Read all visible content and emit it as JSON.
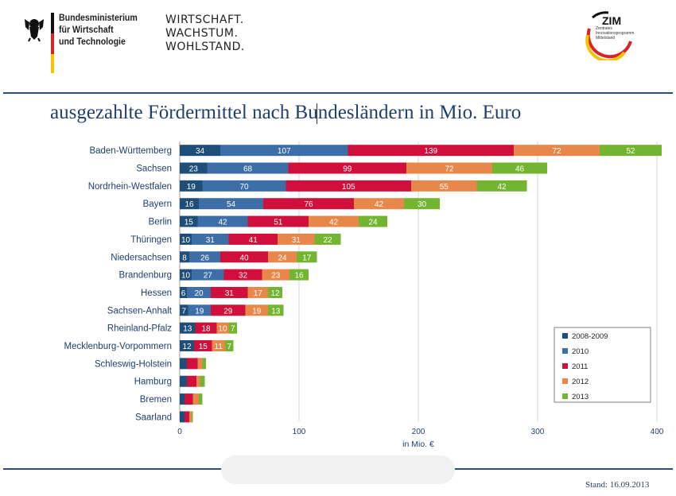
{
  "header": {
    "ministry_name": "Bundesministerium\nfür Wirtschaft\nund Technologie",
    "motto": "WIRTSCHAFT.\nWACHSTUM.\nWOHLSTAND.",
    "zim_logo": {
      "title": "ZIM",
      "subtitle": "Zentrales Innovationsprogramm Mittelstand"
    }
  },
  "slide": {
    "title": "ausgezahlte Fördermittel nach Bundesländern in Mio. Euro",
    "stand": "Stand: 16.09.2013"
  },
  "colors": {
    "2008-2009": "#1f4e79",
    "2010": "#3d6ea8",
    "2011": "#d0103a",
    "2012": "#e8874a",
    "2013": "#73b530",
    "axis_label": "#1f3f6e"
  },
  "chart_data": {
    "type": "bar",
    "orientation": "horizontal",
    "stacked": true,
    "categories": [
      "Baden-Württemberg",
      "Sachsen",
      "Nordrhein-Westfalen",
      "Bayern",
      "Berlin",
      "Thüringen",
      "Niedersachsen",
      "Brandenburg",
      "Hessen",
      "Sachsen-Anhalt",
      "Rheinland-Pfalz",
      "Mecklenburg-Vorpommern",
      "Schleswig-Holstein",
      "Hamburg",
      "Bremen",
      "Saarland"
    ],
    "series": [
      {
        "name": "2008-2009",
        "values": [
          34,
          23,
          19,
          16,
          15,
          10,
          8,
          10,
          6,
          7,
          13,
          12,
          6,
          6,
          4,
          4
        ],
        "labels": [
          "34",
          "23",
          "19",
          "16",
          "15",
          "10",
          "8",
          "10",
          "6",
          "7",
          "13",
          "12",
          "",
          "",
          "",
          ""
        ]
      },
      {
        "name": "2010",
        "values": [
          107,
          68,
          70,
          54,
          42,
          31,
          26,
          27,
          20,
          19,
          0,
          0,
          0,
          0,
          0,
          0
        ],
        "labels": [
          "107",
          "68",
          "70",
          "54",
          "42",
          "31",
          "26",
          "27",
          "20",
          "19",
          "",
          "",
          "",
          "",
          "",
          ""
        ]
      },
      {
        "name": "2011",
        "values": [
          139,
          99,
          105,
          76,
          51,
          41,
          40,
          32,
          31,
          29,
          18,
          15,
          9,
          8,
          7,
          4
        ],
        "labels": [
          "139",
          "99",
          "105",
          "76",
          "51",
          "41",
          "40",
          "32",
          "31",
          "29",
          "18",
          "15",
          "",
          "",
          "",
          ""
        ]
      },
      {
        "name": "2012",
        "values": [
          72,
          72,
          55,
          42,
          42,
          31,
          24,
          23,
          17,
          19,
          10,
          11,
          4,
          3,
          5,
          2
        ],
        "labels": [
          "72",
          "72",
          "55",
          "42",
          "42",
          "31",
          "24",
          "23",
          "17",
          "19",
          "10",
          "11",
          "",
          "",
          "",
          ""
        ]
      },
      {
        "name": "2013",
        "values": [
          52,
          46,
          42,
          30,
          24,
          22,
          17,
          16,
          12,
          13,
          7,
          7,
          3,
          4,
          3,
          1
        ],
        "labels": [
          "52",
          "46",
          "42",
          "30",
          "24",
          "22",
          "17",
          "16",
          "12",
          "13",
          "7",
          "7",
          "",
          "",
          "",
          ""
        ]
      }
    ],
    "xlabel": "in Mio. €",
    "xlim": [
      0,
      400
    ],
    "xticks": [
      0,
      100,
      200,
      300,
      400
    ],
    "grid": true,
    "legend_position": "bottom-right"
  }
}
